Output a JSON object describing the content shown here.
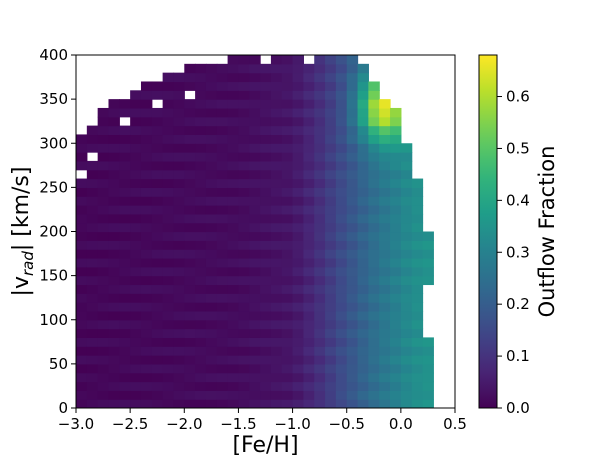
{
  "chart_data": {
    "type": "heatmap",
    "x_quantity": "[Fe/H]",
    "y_quantity": "|v_rad| [km/s]",
    "xlabel": "[Fe/H]",
    "ylabel_parts": {
      "pre": "|v",
      "sub": "rad",
      "post": "| [km/s]"
    },
    "xlim": [
      -3.0,
      0.5
    ],
    "ylim": [
      0,
      400
    ],
    "x_ticks": [
      -3.0,
      -2.5,
      -2.0,
      -1.5,
      -1.0,
      -0.5,
      0.0,
      0.5
    ],
    "x_tick_labels": [
      "−3.0",
      "−2.5",
      "−2.0",
      "−1.5",
      "−1.0",
      "−0.5",
      "0.0",
      "0.5"
    ],
    "y_ticks": [
      0,
      50,
      100,
      150,
      200,
      250,
      300,
      350,
      400
    ],
    "y_tick_labels": [
      "0",
      "50",
      "100",
      "150",
      "200",
      "250",
      "300",
      "350",
      "400"
    ],
    "colormap": "viridis",
    "colorbar": {
      "label": "Outflow Fraction",
      "range": [
        0.0,
        0.68
      ],
      "ticks": [
        0.0,
        0.1,
        0.2,
        0.3,
        0.4,
        0.5,
        0.6
      ],
      "tick_labels": [
        "0.0",
        "0.1",
        "0.2",
        "0.3",
        "0.4",
        "0.5",
        "0.6"
      ]
    },
    "grid": false,
    "bins": {
      "x_width": 0.1,
      "y_width": 10
    },
    "coverage": {
      "feh_upper_by_v": [
        {
          "v": 0,
          "feh_max": 0.25
        },
        {
          "v": 80,
          "feh_max": 0.25
        },
        {
          "v": 110,
          "feh_max": 0.2
        },
        {
          "v": 140,
          "feh_max": 0.25
        },
        {
          "v": 200,
          "feh_max": 0.25
        },
        {
          "v": 250,
          "feh_max": 0.2
        },
        {
          "v": 280,
          "feh_max": 0.1
        },
        {
          "v": 330,
          "feh_max": 0.0
        },
        {
          "v": 360,
          "feh_max": -0.2
        },
        {
          "v": 380,
          "feh_max": -0.3
        },
        {
          "v": 400,
          "feh_max": -0.45
        }
      ],
      "feh_lower_by_v": [
        {
          "v": 0,
          "feh_min": -3.0
        },
        {
          "v": 300,
          "feh_min": -3.0
        },
        {
          "v": 310,
          "feh_min": -2.9
        },
        {
          "v": 340,
          "feh_min": -2.8
        },
        {
          "v": 350,
          "feh_min": -2.6
        },
        {
          "v": 370,
          "feh_min": -2.3
        },
        {
          "v": 390,
          "feh_min": -1.9
        },
        {
          "v": 400,
          "feh_min": -1.3
        }
      ],
      "empty_cells": [
        {
          "feh": -2.95,
          "v": 265
        },
        {
          "feh": -2.85,
          "v": 285
        },
        {
          "feh": -2.55,
          "v": 325
        },
        {
          "feh": -2.25,
          "v": 345
        },
        {
          "feh": -1.95,
          "v": 355
        },
        {
          "feh": -1.25,
          "v": 395
        },
        {
          "feh": -0.85,
          "v": 395
        }
      ]
    },
    "outflow_fraction_by_feh": [
      {
        "feh": -3.0,
        "value": 0.01
      },
      {
        "feh": -1.5,
        "value": 0.02
      },
      {
        "feh": -1.0,
        "value": 0.04
      },
      {
        "feh": -0.8,
        "value": 0.08
      },
      {
        "feh": -0.5,
        "value": 0.17
      },
      {
        "feh": -0.2,
        "value": 0.26
      },
      {
        "feh": 0.1,
        "value": 0.33
      },
      {
        "feh": 0.3,
        "value": 0.35
      }
    ],
    "high_velocity_boost": [
      {
        "v": 0,
        "scale": 0.0
      },
      {
        "v": 200,
        "scale": 0.1
      },
      {
        "v": 280,
        "scale": 0.45
      },
      {
        "v": 330,
        "scale": 1.0
      },
      {
        "v": 400,
        "scale": 1.0
      }
    ],
    "hotspot": {
      "feh_center": -0.15,
      "v_center": 340,
      "peak_value": 0.65
    }
  }
}
